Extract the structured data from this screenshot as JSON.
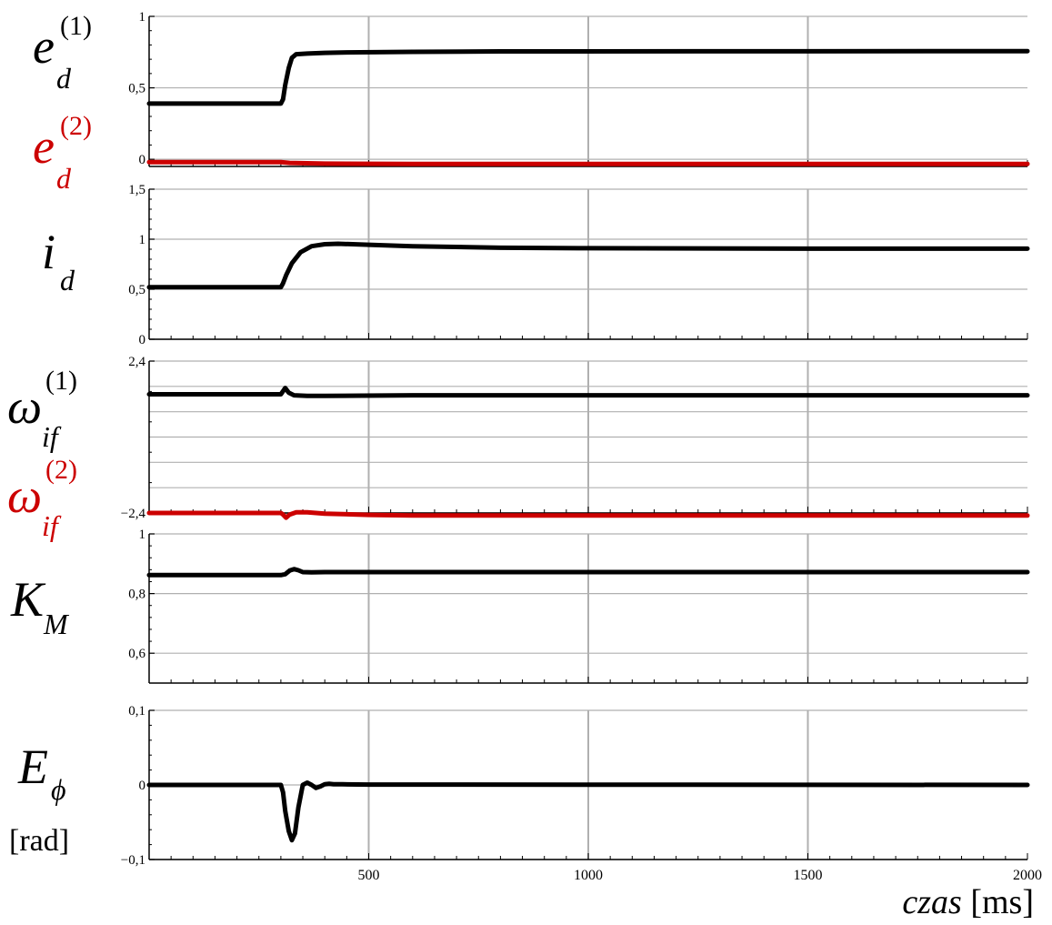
{
  "chart_data": [
    {
      "type": "line",
      "ylabel": "e_d^(1), e_d^(2)",
      "xlabel": "czas [ms]",
      "xlim": [
        0,
        2000
      ],
      "ylim": [
        -0.05,
        1
      ],
      "yticks": [
        0,
        0.5,
        1
      ],
      "ytick_labels": [
        "0",
        "0,5",
        "1"
      ],
      "grid": true,
      "series": [
        {
          "color": "#000000",
          "x": [
            0,
            300,
            305,
            310,
            318,
            325,
            335,
            360,
            400,
            450,
            600,
            800,
            2000
          ],
          "y": [
            0.39,
            0.39,
            0.42,
            0.52,
            0.64,
            0.71,
            0.735,
            0.74,
            0.745,
            0.748,
            0.752,
            0.755,
            0.757
          ]
        },
        {
          "color": "#cc0000",
          "x": [
            0,
            300,
            320,
            400,
            600,
            2000
          ],
          "y": [
            -0.02,
            -0.02,
            -0.025,
            -0.03,
            -0.032,
            -0.032
          ]
        }
      ]
    },
    {
      "type": "line",
      "ylabel": "i_d",
      "xlim": [
        0,
        2000
      ],
      "ylim": [
        0,
        1.5
      ],
      "yticks": [
        0,
        0.5,
        1,
        1.5
      ],
      "ytick_labels": [
        "0",
        "0,5",
        "1",
        "1,5"
      ],
      "grid": true,
      "series": [
        {
          "color": "#000000",
          "x": [
            0,
            300,
            305,
            312,
            325,
            345,
            370,
            400,
            430,
            500,
            600,
            800,
            1000,
            1500,
            2000
          ],
          "y": [
            0.52,
            0.52,
            0.56,
            0.64,
            0.76,
            0.87,
            0.93,
            0.95,
            0.955,
            0.945,
            0.93,
            0.915,
            0.91,
            0.905,
            0.905
          ]
        }
      ]
    },
    {
      "type": "line",
      "ylabel": "omega_if^(1), omega_if^(2)",
      "xlim": [
        0,
        2000
      ],
      "ylim": [
        -2.4,
        2.4
      ],
      "yticks": [
        -2.4,
        2.4
      ],
      "ytick_labels": [
        "−2,4",
        "2,4"
      ],
      "grid": true,
      "series": [
        {
          "color": "#000000",
          "x": [
            0,
            300,
            305,
            310,
            318,
            330,
            360,
            400,
            600,
            2000
          ],
          "y": [
            1.35,
            1.35,
            1.45,
            1.55,
            1.4,
            1.32,
            1.3,
            1.3,
            1.32,
            1.32
          ]
        },
        {
          "color": "#cc0000",
          "x": [
            0,
            300,
            305,
            312,
            320,
            335,
            360,
            400,
            500,
            600,
            800,
            2000
          ],
          "y": [
            -2.4,
            -2.4,
            -2.45,
            -2.55,
            -2.45,
            -2.38,
            -2.38,
            -2.42,
            -2.46,
            -2.48,
            -2.48,
            -2.48
          ]
        }
      ]
    },
    {
      "type": "line",
      "ylabel": "K_M",
      "xlim": [
        0,
        2000
      ],
      "ylim": [
        0.5,
        1
      ],
      "yticks": [
        0.6,
        0.8,
        1
      ],
      "ytick_labels": [
        "0,6",
        "0,8",
        "1"
      ],
      "grid": true,
      "series": [
        {
          "color": "#000000",
          "x": [
            0,
            300,
            310,
            320,
            330,
            340,
            350,
            370,
            400,
            600,
            2000
          ],
          "y": [
            0.862,
            0.862,
            0.865,
            0.877,
            0.882,
            0.878,
            0.872,
            0.871,
            0.872,
            0.872,
            0.872
          ]
        }
      ]
    },
    {
      "type": "line",
      "ylabel": "E_phi",
      "yunit": "[rad]",
      "xlim": [
        0,
        2000
      ],
      "ylim": [
        -0.1,
        0.1
      ],
      "yticks": [
        -0.1,
        0,
        0.1
      ],
      "ytick_labels": [
        "−0,1",
        "0",
        "0,1"
      ],
      "xticks": [
        500,
        1000,
        1500,
        2000
      ],
      "xtick_labels": [
        "500",
        "1000",
        "1500",
        "2000"
      ],
      "grid": true,
      "series": [
        {
          "color": "#000000",
          "x": [
            0,
            300,
            305,
            310,
            318,
            325,
            332,
            340,
            350,
            360,
            370,
            380,
            390,
            400,
            410,
            420,
            440,
            500,
            2000
          ],
          "y": [
            0,
            0,
            -0.01,
            -0.035,
            -0.062,
            -0.074,
            -0.065,
            -0.03,
            0,
            0.003,
            0,
            -0.004,
            -0.002,
            0.001,
            0.0015,
            0.001,
            0.0008,
            0.0005,
            0
          ]
        }
      ]
    }
  ],
  "labels": {
    "p1_sym1_base": "e",
    "p1_sym1_sub": "d",
    "p1_sym1_sup": "(1)",
    "p1_sym2_base": "e",
    "p1_sym2_sub": "d",
    "p1_sym2_sup": "(2)",
    "p2_sym_base": "i",
    "p2_sym_sub": "d",
    "p3_sym1_base": "ω",
    "p3_sym1_sub": "if",
    "p3_sym1_sup": "(1)",
    "p3_sym2_base": "ω",
    "p3_sym2_sub": "if",
    "p3_sym2_sup": "(2)",
    "p4_sym_base": "K",
    "p4_sym_sub": "M",
    "p5_sym_base": "E",
    "p5_sym_sub": "ϕ",
    "p5_unit": "[rad]",
    "x_title_var": "czas",
    "x_title_unit": "[ms]"
  },
  "colors": {
    "series_black": "#000000",
    "series_red": "#cc0000",
    "grid": "#b0b0b0"
  }
}
